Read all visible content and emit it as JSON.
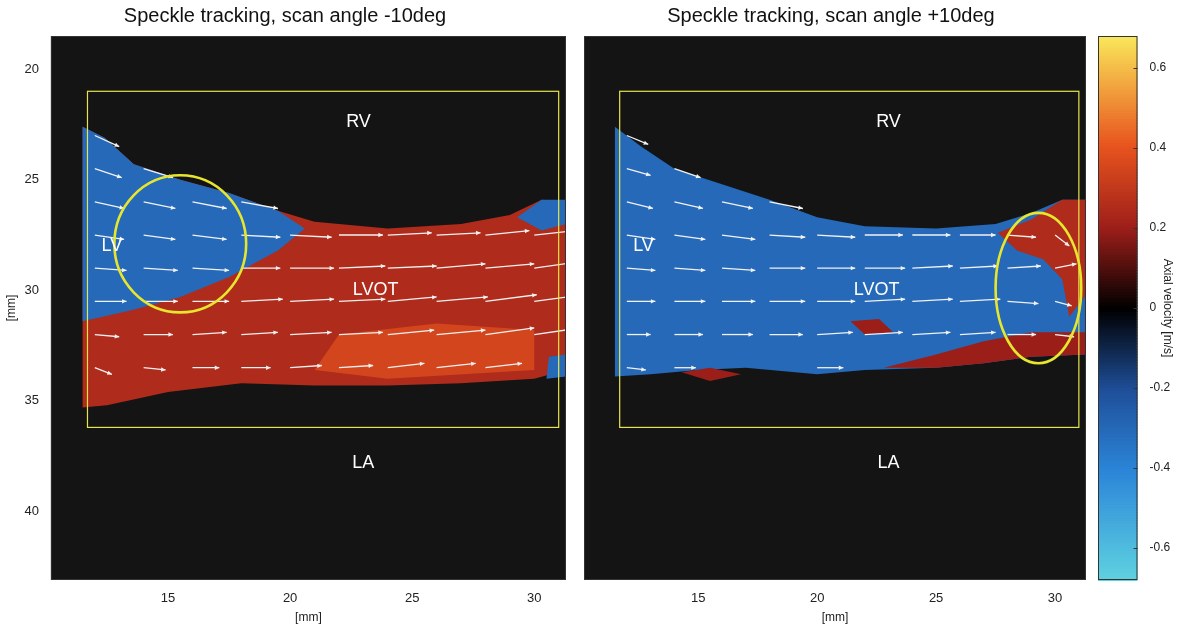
{
  "chart_data": [
    {
      "type": "vector_field",
      "title": "Speckle tracking, scan angle -10deg",
      "x_label": "[mm]",
      "y_label": "[mm]",
      "xlim": [
        10.2,
        31.3
      ],
      "ylim": [
        18.5,
        43.1
      ],
      "xticks": [
        15,
        20,
        25,
        30
      ],
      "yticks": [
        20,
        25,
        30,
        35,
        40
      ],
      "grid": false,
      "roi": {
        "xlim": [
          11.7,
          31.0
        ],
        "ylim": [
          21.0,
          36.2
        ]
      },
      "highlight": {
        "cx": 15.5,
        "cy": 27.9,
        "rx": 2.7,
        "ry": 3.1
      },
      "regions": [
        {
          "velocity": 0.25,
          "points": [
            [
              11.5,
              22.6
            ],
            [
              12.4,
              23.1
            ],
            [
              13.6,
              24.3
            ],
            [
              15.5,
              25.0
            ],
            [
              17.5,
              25.6
            ],
            [
              19.5,
              26.4
            ],
            [
              21,
              26.9
            ],
            [
              24,
              27.2
            ],
            [
              27,
              27.0
            ],
            [
              29,
              26.6
            ],
            [
              30.3,
              25.9
            ],
            [
              31.3,
              26.0
            ],
            [
              31.3,
              33.6
            ],
            [
              30,
              34.0
            ],
            [
              27,
              34.2
            ],
            [
              24,
              34.3
            ],
            [
              21,
              34.3
            ],
            [
              18,
              34.2
            ],
            [
              15,
              34.6
            ],
            [
              12.5,
              35.2
            ],
            [
              11.5,
              35.3
            ]
          ]
        },
        {
          "velocity": 0.35,
          "points": [
            [
              22,
              32
            ],
            [
              26,
              31.5
            ],
            [
              30,
              31.8
            ],
            [
              30,
              33.6
            ],
            [
              24,
              34.0
            ],
            [
              21,
              33.6
            ]
          ]
        },
        {
          "velocity": -0.3,
          "points": [
            [
              11.5,
              22.6
            ],
            [
              12.4,
              23.1
            ],
            [
              13.6,
              24.3
            ],
            [
              15.5,
              25.0
            ],
            [
              17.5,
              25.6
            ],
            [
              19.5,
              26.4
            ],
            [
              20.6,
              27.2
            ],
            [
              19.5,
              28.2
            ],
            [
              17.5,
              29.4
            ],
            [
              15.5,
              30.3
            ],
            [
              13.5,
              30.9
            ],
            [
              11.5,
              31.4
            ]
          ]
        },
        {
          "velocity": -0.3,
          "points": [
            [
              29.3,
              26.7
            ],
            [
              30.3,
              25.9
            ],
            [
              31.3,
              25.9
            ],
            [
              31.3,
              27.0
            ],
            [
              30.3,
              27.3
            ]
          ]
        },
        {
          "velocity": -0.3,
          "points": [
            [
              30.6,
              33.0
            ],
            [
              31.3,
              32.9
            ],
            [
              31.3,
              33.9
            ],
            [
              30.5,
              34.0
            ]
          ]
        }
      ],
      "vectors": [
        [
          12,
          23,
          1.0,
          0.5
        ],
        [
          12,
          24.5,
          1.1,
          0.4
        ],
        [
          12,
          26,
          1.2,
          0.3
        ],
        [
          12,
          27.5,
          1.2,
          0.2
        ],
        [
          12,
          29,
          1.3,
          0.1
        ],
        [
          12,
          30.5,
          1.3,
          0.0
        ],
        [
          12,
          32,
          1.0,
          0.1
        ],
        [
          12,
          33.5,
          0.7,
          0.3
        ],
        [
          14,
          24.5,
          1.2,
          0.4
        ],
        [
          14,
          26,
          1.3,
          0.3
        ],
        [
          14,
          27.5,
          1.3,
          0.2
        ],
        [
          14,
          29,
          1.4,
          0.1
        ],
        [
          14,
          30.5,
          1.4,
          0.0
        ],
        [
          14,
          32,
          1.2,
          0.0
        ],
        [
          14,
          33.5,
          0.9,
          0.1
        ],
        [
          16,
          26,
          1.4,
          0.3
        ],
        [
          16,
          27.5,
          1.4,
          0.2
        ],
        [
          16,
          29,
          1.5,
          0.1
        ],
        [
          16,
          30.5,
          1.5,
          0.0
        ],
        [
          16,
          32,
          1.4,
          -0.1
        ],
        [
          16,
          33.5,
          1.1,
          0.0
        ],
        [
          18,
          26,
          1.5,
          0.3
        ],
        [
          18,
          27.5,
          1.6,
          0.1
        ],
        [
          18,
          29,
          1.6,
          0.0
        ],
        [
          18,
          30.5,
          1.7,
          -0.1
        ],
        [
          18,
          32,
          1.5,
          -0.1
        ],
        [
          18,
          33.5,
          1.2,
          0.0
        ],
        [
          20,
          27.5,
          1.7,
          0.1
        ],
        [
          20,
          29,
          1.8,
          0.0
        ],
        [
          20,
          30.5,
          1.8,
          -0.1
        ],
        [
          20,
          32,
          1.7,
          -0.1
        ],
        [
          20,
          33.5,
          1.3,
          -0.1
        ],
        [
          22,
          27.5,
          1.8,
          0.0
        ],
        [
          22,
          29,
          1.9,
          -0.1
        ],
        [
          22,
          30.5,
          1.9,
          -0.1
        ],
        [
          22,
          32,
          1.8,
          -0.1
        ],
        [
          22,
          33.5,
          1.4,
          -0.1
        ],
        [
          24,
          27.5,
          1.8,
          -0.1
        ],
        [
          24,
          29,
          2.0,
          -0.1
        ],
        [
          24,
          30.5,
          2.0,
          -0.2
        ],
        [
          24,
          32,
          1.9,
          -0.2
        ],
        [
          24,
          33.5,
          1.5,
          -0.2
        ],
        [
          26,
          27.5,
          1.8,
          -0.1
        ],
        [
          26,
          29,
          2.0,
          -0.2
        ],
        [
          26,
          30.5,
          2.1,
          -0.2
        ],
        [
          26,
          32,
          2.0,
          -0.2
        ],
        [
          26,
          33.5,
          1.6,
          -0.2
        ],
        [
          28,
          27.5,
          1.8,
          -0.2
        ],
        [
          28,
          29,
          2.0,
          -0.2
        ],
        [
          28,
          30.5,
          2.1,
          -0.3
        ],
        [
          28,
          32,
          2.0,
          -0.3
        ],
        [
          28,
          33.5,
          1.5,
          -0.2
        ],
        [
          30,
          27.5,
          1.7,
          -0.2
        ],
        [
          30,
          29,
          1.9,
          -0.3
        ],
        [
          30,
          30.5,
          2.0,
          -0.3
        ],
        [
          30,
          32,
          1.9,
          -0.3
        ]
      ],
      "annotations": [
        {
          "text": "RV",
          "x": 22.8,
          "y": 22.4
        },
        {
          "text": "LV",
          "x": 12.7,
          "y": 28.0
        },
        {
          "text": "LVOT",
          "x": 23.5,
          "y": 30.0
        },
        {
          "text": "LA",
          "x": 23.0,
          "y": 37.8
        }
      ]
    },
    {
      "type": "vector_field",
      "title": "Speckle tracking, scan angle +10deg",
      "x_label": "[mm]",
      "xlim": [
        10.2,
        31.3
      ],
      "ylim": [
        18.5,
        43.1
      ],
      "xticks": [
        15,
        20,
        25,
        30
      ],
      "tick_labels": "x",
      "grid": false,
      "roi": {
        "xlim": [
          11.7,
          31.0
        ],
        "ylim": [
          21.0,
          36.2
        ]
      },
      "highlight": {
        "cx": 29.3,
        "cy": 29.9,
        "rx": 1.8,
        "ry": 3.4
      },
      "regions": [
        {
          "velocity": -0.3,
          "points": [
            [
              11.5,
              22.6
            ],
            [
              12.6,
              23.5
            ],
            [
              14,
              24.5
            ],
            [
              16,
              25.2
            ],
            [
              18,
              25.9
            ],
            [
              20,
              26.7
            ],
            [
              22,
              27.1
            ],
            [
              25,
              27.2
            ],
            [
              27.5,
              27.0
            ],
            [
              29,
              26.5
            ],
            [
              30.3,
              25.9
            ],
            [
              31.3,
              25.9
            ],
            [
              31.3,
              32.9
            ],
            [
              29,
              33.0
            ],
            [
              27,
              33.3
            ],
            [
              25,
              33.5
            ],
            [
              22,
              33.6
            ],
            [
              20,
              33.8
            ],
            [
              17,
              33.5
            ],
            [
              15,
              33.6
            ],
            [
              13,
              33.8
            ],
            [
              11.5,
              33.9
            ]
          ]
        },
        {
          "velocity": 0.25,
          "points": [
            [
              27.6,
              27.4
            ],
            [
              29,
              26.8
            ],
            [
              30.3,
              25.9
            ],
            [
              31.3,
              25.9
            ],
            [
              31.3,
              30.2
            ],
            [
              30.6,
              31.2
            ],
            [
              30.3,
              29.5
            ],
            [
              29.5,
              28.6
            ],
            [
              28.4,
              28.2
            ]
          ]
        },
        {
          "velocity": 0.2,
          "points": [
            [
              22.8,
              33.5
            ],
            [
              25,
              32.9
            ],
            [
              27,
              32.3
            ],
            [
              29,
              31.9
            ],
            [
              31.3,
              31.9
            ],
            [
              31.3,
              32.9
            ],
            [
              29,
              33.0
            ],
            [
              27,
              33.3
            ],
            [
              25,
              33.5
            ]
          ]
        },
        {
          "velocity": 0.2,
          "points": [
            [
              14.3,
              33.7
            ],
            [
              15.5,
              33.5
            ],
            [
              16.8,
              33.8
            ],
            [
              15.5,
              34.1
            ]
          ]
        },
        {
          "velocity": 0.2,
          "points": [
            [
              21.4,
              31.4
            ],
            [
              22.6,
              31.3
            ],
            [
              23.2,
              31.9
            ],
            [
              22,
              32.0
            ]
          ]
        }
      ],
      "vectors": [
        [
          12,
          23,
          0.9,
          0.4
        ],
        [
          12,
          24.5,
          1.0,
          0.3
        ],
        [
          12,
          26,
          1.1,
          0.3
        ],
        [
          12,
          27.5,
          1.2,
          0.2
        ],
        [
          12,
          29,
          1.2,
          0.1
        ],
        [
          12,
          30.5,
          1.2,
          0.0
        ],
        [
          12,
          32,
          1.0,
          0.0
        ],
        [
          12,
          33.5,
          0.8,
          0.1
        ],
        [
          14,
          24.5,
          1.1,
          0.4
        ],
        [
          14,
          26,
          1.2,
          0.3
        ],
        [
          14,
          27.5,
          1.3,
          0.2
        ],
        [
          14,
          29,
          1.3,
          0.1
        ],
        [
          14,
          30.5,
          1.3,
          0.0
        ],
        [
          14,
          32,
          1.2,
          0.0
        ],
        [
          14,
          33.5,
          0.9,
          0.0
        ],
        [
          16,
          26,
          1.3,
          0.3
        ],
        [
          16,
          27.5,
          1.4,
          0.2
        ],
        [
          16,
          29,
          1.4,
          0.1
        ],
        [
          16,
          30.5,
          1.4,
          0.0
        ],
        [
          16,
          32,
          1.3,
          0.0
        ],
        [
          18,
          26,
          1.4,
          0.3
        ],
        [
          18,
          27.5,
          1.5,
          0.1
        ],
        [
          18,
          29,
          1.5,
          0.0
        ],
        [
          18,
          30.5,
          1.5,
          0.0
        ],
        [
          18,
          32,
          1.4,
          0.0
        ],
        [
          20,
          27.5,
          1.6,
          0.1
        ],
        [
          20,
          29,
          1.6,
          0.0
        ],
        [
          20,
          30.5,
          1.6,
          0.0
        ],
        [
          20,
          32,
          1.5,
          -0.1
        ],
        [
          20,
          33.5,
          1.1,
          0.0
        ],
        [
          22,
          27.5,
          1.6,
          0.0
        ],
        [
          22,
          29,
          1.7,
          0.0
        ],
        [
          22,
          30.5,
          1.7,
          -0.1
        ],
        [
          22,
          32,
          1.6,
          -0.1
        ],
        [
          24,
          27.5,
          1.6,
          0.0
        ],
        [
          24,
          29,
          1.7,
          -0.1
        ],
        [
          24,
          30.5,
          1.7,
          -0.1
        ],
        [
          24,
          32,
          1.6,
          -0.1
        ],
        [
          26,
          27.5,
          1.5,
          0.0
        ],
        [
          26,
          29,
          1.6,
          -0.1
        ],
        [
          26,
          30.5,
          1.7,
          -0.1
        ],
        [
          26,
          32,
          1.5,
          -0.1
        ],
        [
          28,
          27.5,
          1.2,
          0.1
        ],
        [
          28,
          29,
          1.4,
          -0.1
        ],
        [
          28,
          30.5,
          1.3,
          0.1
        ],
        [
          28,
          32,
          1.2,
          0.0
        ],
        [
          30,
          27.5,
          0.6,
          0.5
        ],
        [
          30,
          29,
          0.9,
          -0.2
        ],
        [
          30,
          30.5,
          0.7,
          0.2
        ],
        [
          30,
          32,
          0.8,
          0.1
        ]
      ],
      "annotations": [
        {
          "text": "RV",
          "x": 23.0,
          "y": 22.4
        },
        {
          "text": "LV",
          "x": 12.7,
          "y": 28.0
        },
        {
          "text": "LVOT",
          "x": 22.5,
          "y": 30.0
        },
        {
          "text": "LA",
          "x": 23.0,
          "y": 37.8
        }
      ]
    }
  ],
  "colorbar": {
    "label": "Axial velocity [m/s]",
    "range": [
      -0.68,
      0.68
    ],
    "ticks": [
      -0.6,
      -0.4,
      -0.2,
      0,
      0.2,
      0.4,
      0.6
    ]
  }
}
